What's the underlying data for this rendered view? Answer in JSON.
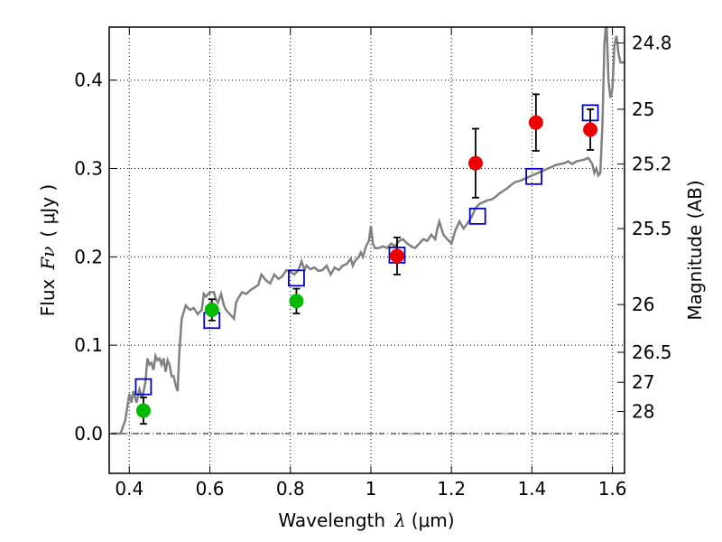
{
  "chart_data": {
    "type": "scatter",
    "xlabel_text": "Wavelength",
    "xlabel_symbol": "λ",
    "xlabel_unit": "(μm)",
    "ylabel_text": "Flux",
    "ylabel_symbol": "Fν",
    "ylabel_unit": "( μJy )",
    "y2label": "Magnitude (AB)",
    "xlim": [
      0.35,
      1.63
    ],
    "ylim": [
      -0.045,
      0.46
    ],
    "grid": true,
    "x_ticks": [
      {
        "value": 0.4,
        "label": "0.4"
      },
      {
        "value": 0.6,
        "label": "0.6"
      },
      {
        "value": 0.8,
        "label": "0.8"
      },
      {
        "value": 1.0,
        "label": "1"
      },
      {
        "value": 1.2,
        "label": "1.2"
      },
      {
        "value": 1.4,
        "label": "1.4"
      },
      {
        "value": 1.6,
        "label": "1.6"
      }
    ],
    "y_ticks": [
      {
        "value": 0.0,
        "label": "0.0"
      },
      {
        "value": 0.1,
        "label": "0.1"
      },
      {
        "value": 0.2,
        "label": "0.2"
      },
      {
        "value": 0.3,
        "label": "0.3"
      },
      {
        "value": 0.4,
        "label": "0.4"
      }
    ],
    "mag_ticks": [
      {
        "label": "24.8",
        "flux": 0.442
      },
      {
        "label": "25",
        "flux": 0.367
      },
      {
        "label": "25.2",
        "flux": 0.305
      },
      {
        "label": "25.5",
        "flux": 0.232
      },
      {
        "label": "26",
        "flux": 0.146
      },
      {
        "label": "26.5",
        "flux": 0.092
      },
      {
        "label": "27",
        "flux": 0.058
      },
      {
        "label": "28",
        "flux": 0.025
      }
    ],
    "colors": {
      "spectrum": "#808080",
      "green": "#00bb00",
      "red": "#ee0000",
      "model": "#0000cc",
      "errorbar": "#000000"
    },
    "series": [
      {
        "kind": "spectrum",
        "points": [
          [
            0.355,
            0.0
          ],
          [
            0.37,
            0.0
          ],
          [
            0.378,
            0.0
          ],
          [
            0.39,
            0.015
          ],
          [
            0.395,
            0.03
          ],
          [
            0.4,
            0.045
          ],
          [
            0.405,
            0.035
          ],
          [
            0.41,
            0.048
          ],
          [
            0.418,
            0.035
          ],
          [
            0.425,
            0.05
          ],
          [
            0.432,
            0.04
          ],
          [
            0.44,
            0.058
          ],
          [
            0.445,
            0.085
          ],
          [
            0.45,
            0.078
          ],
          [
            0.455,
            0.08
          ],
          [
            0.46,
            0.072
          ],
          [
            0.465,
            0.088
          ],
          [
            0.47,
            0.083
          ],
          [
            0.475,
            0.085
          ],
          [
            0.48,
            0.078
          ],
          [
            0.485,
            0.085
          ],
          [
            0.49,
            0.07
          ],
          [
            0.495,
            0.083
          ],
          [
            0.5,
            0.078
          ],
          [
            0.505,
            0.065
          ],
          [
            0.51,
            0.065
          ],
          [
            0.515,
            0.055
          ],
          [
            0.52,
            0.048
          ],
          [
            0.524,
            0.09
          ],
          [
            0.53,
            0.13
          ],
          [
            0.54,
            0.145
          ],
          [
            0.55,
            0.14
          ],
          [
            0.56,
            0.142
          ],
          [
            0.57,
            0.135
          ],
          [
            0.58,
            0.14
          ],
          [
            0.585,
            0.158
          ],
          [
            0.59,
            0.155
          ],
          [
            0.6,
            0.16
          ],
          [
            0.61,
            0.16
          ],
          [
            0.615,
            0.152
          ],
          [
            0.62,
            0.148
          ],
          [
            0.628,
            0.158
          ],
          [
            0.635,
            0.145
          ],
          [
            0.64,
            0.14
          ],
          [
            0.65,
            0.135
          ],
          [
            0.66,
            0.13
          ],
          [
            0.665,
            0.148
          ],
          [
            0.67,
            0.153
          ],
          [
            0.68,
            0.16
          ],
          [
            0.69,
            0.158
          ],
          [
            0.7,
            0.162
          ],
          [
            0.71,
            0.165
          ],
          [
            0.72,
            0.168
          ],
          [
            0.728,
            0.18
          ],
          [
            0.735,
            0.176
          ],
          [
            0.74,
            0.173
          ],
          [
            0.75,
            0.17
          ],
          [
            0.76,
            0.18
          ],
          [
            0.77,
            0.175
          ],
          [
            0.78,
            0.178
          ],
          [
            0.79,
            0.185
          ],
          [
            0.8,
            0.183
          ],
          [
            0.81,
            0.18
          ],
          [
            0.82,
            0.185
          ],
          [
            0.828,
            0.195
          ],
          [
            0.835,
            0.185
          ],
          [
            0.84,
            0.19
          ],
          [
            0.85,
            0.186
          ],
          [
            0.86,
            0.188
          ],
          [
            0.87,
            0.184
          ],
          [
            0.88,
            0.185
          ],
          [
            0.89,
            0.19
          ],
          [
            0.9,
            0.18
          ],
          [
            0.91,
            0.188
          ],
          [
            0.92,
            0.185
          ],
          [
            0.93,
            0.19
          ],
          [
            0.94,
            0.192
          ],
          [
            0.95,
            0.198
          ],
          [
            0.955,
            0.19
          ],
          [
            0.96,
            0.195
          ],
          [
            0.97,
            0.2
          ],
          [
            0.975,
            0.205
          ],
          [
            0.98,
            0.2
          ],
          [
            0.988,
            0.212
          ],
          [
            0.995,
            0.218
          ],
          [
            1.0,
            0.235
          ],
          [
            1.005,
            0.215
          ],
          [
            1.01,
            0.21
          ],
          [
            1.02,
            0.21
          ],
          [
            1.03,
            0.212
          ],
          [
            1.04,
            0.21
          ],
          [
            1.05,
            0.215
          ],
          [
            1.06,
            0.212
          ],
          [
            1.07,
            0.218
          ],
          [
            1.08,
            0.22
          ],
          [
            1.09,
            0.215
          ],
          [
            1.1,
            0.212
          ],
          [
            1.11,
            0.21
          ],
          [
            1.12,
            0.215
          ],
          [
            1.13,
            0.22
          ],
          [
            1.14,
            0.218
          ],
          [
            1.15,
            0.225
          ],
          [
            1.16,
            0.22
          ],
          [
            1.165,
            0.232
          ],
          [
            1.17,
            0.24
          ],
          [
            1.18,
            0.225
          ],
          [
            1.19,
            0.22
          ],
          [
            1.2,
            0.215
          ],
          [
            1.21,
            0.23
          ],
          [
            1.22,
            0.24
          ],
          [
            1.23,
            0.232
          ],
          [
            1.24,
            0.238
          ],
          [
            1.25,
            0.245
          ],
          [
            1.26,
            0.255
          ],
          [
            1.27,
            0.26
          ],
          [
            1.28,
            0.262
          ],
          [
            1.29,
            0.264
          ],
          [
            1.3,
            0.265
          ],
          [
            1.31,
            0.268
          ],
          [
            1.32,
            0.272
          ],
          [
            1.33,
            0.275
          ],
          [
            1.34,
            0.278
          ],
          [
            1.35,
            0.282
          ],
          [
            1.36,
            0.285
          ],
          [
            1.37,
            0.286
          ],
          [
            1.38,
            0.288
          ],
          [
            1.39,
            0.29
          ],
          [
            1.4,
            0.292
          ],
          [
            1.41,
            0.294
          ],
          [
            1.42,
            0.296
          ],
          [
            1.43,
            0.298
          ],
          [
            1.44,
            0.3
          ],
          [
            1.45,
            0.302
          ],
          [
            1.46,
            0.304
          ],
          [
            1.47,
            0.305
          ],
          [
            1.48,
            0.306
          ],
          [
            1.49,
            0.308
          ],
          [
            1.5,
            0.305
          ],
          [
            1.51,
            0.308
          ],
          [
            1.52,
            0.309
          ],
          [
            1.53,
            0.31
          ],
          [
            1.54,
            0.312
          ],
          [
            1.55,
            0.305
          ],
          [
            1.555,
            0.295
          ],
          [
            1.56,
            0.3
          ],
          [
            1.565,
            0.292
          ],
          [
            1.57,
            0.295
          ],
          [
            1.575,
            0.35
          ],
          [
            1.58,
            0.44
          ],
          [
            1.585,
            0.47
          ],
          [
            1.59,
            0.4
          ],
          [
            1.595,
            0.38
          ],
          [
            1.6,
            0.39
          ],
          [
            1.605,
            0.44
          ],
          [
            1.61,
            0.45
          ],
          [
            1.615,
            0.43
          ],
          [
            1.62,
            0.42
          ],
          [
            1.63,
            0.42
          ]
        ]
      },
      {
        "kind": "model",
        "points": [
          {
            "x": 0.435,
            "y": 0.053
          },
          {
            "x": 0.605,
            "y": 0.128
          },
          {
            "x": 0.815,
            "y": 0.176
          },
          {
            "x": 1.065,
            "y": 0.202
          },
          {
            "x": 1.265,
            "y": 0.246
          },
          {
            "x": 1.405,
            "y": 0.291
          },
          {
            "x": 1.545,
            "y": 0.363
          }
        ]
      },
      {
        "kind": "green",
        "points": [
          {
            "x": 0.435,
            "y": 0.026,
            "err": 0.015
          },
          {
            "x": 0.605,
            "y": 0.14,
            "err": 0.012
          },
          {
            "x": 0.815,
            "y": 0.15,
            "err": 0.014
          }
        ]
      },
      {
        "kind": "red",
        "points": [
          {
            "x": 1.065,
            "y": 0.201,
            "err": 0.021
          },
          {
            "x": 1.26,
            "y": 0.306,
            "err": 0.039
          },
          {
            "x": 1.41,
            "y": 0.352,
            "err": 0.032
          },
          {
            "x": 1.545,
            "y": 0.344,
            "err": 0.023
          }
        ]
      }
    ]
  }
}
